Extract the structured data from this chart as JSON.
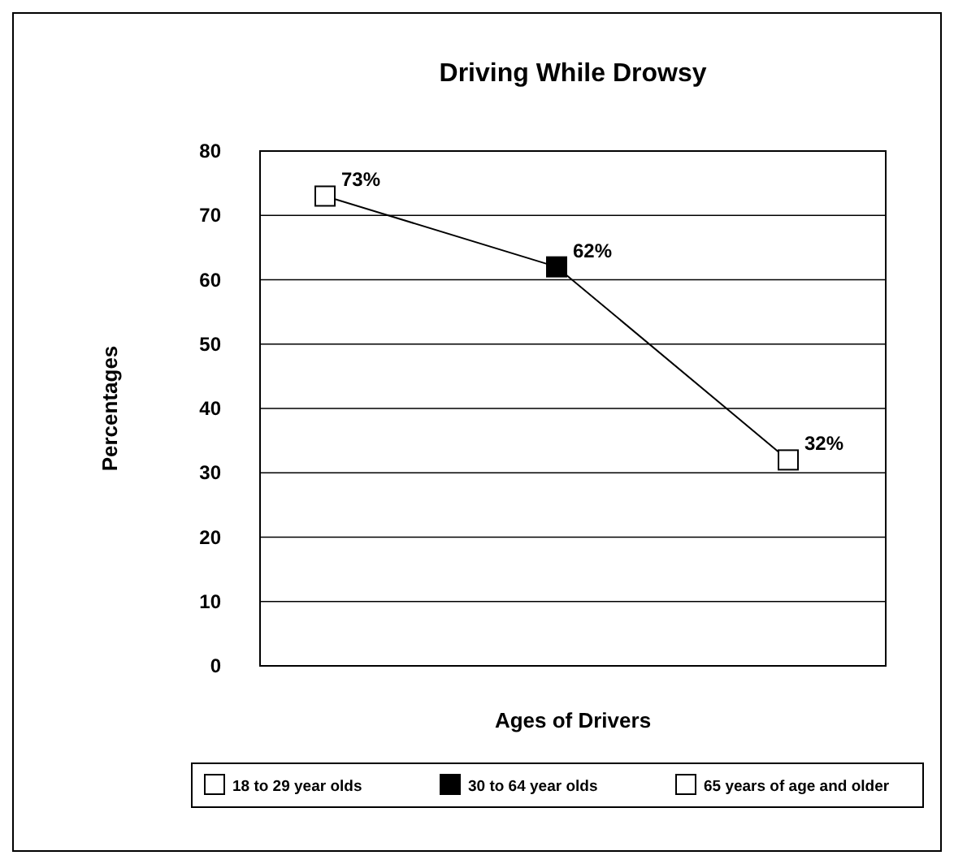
{
  "chart_data": {
    "type": "line",
    "title": "Driving While Drowsy",
    "xlabel": "Ages of Drivers",
    "ylabel": "Percentages",
    "categories": [
      null,
      null,
      null
    ],
    "series": [
      {
        "color": "#000000",
        "values": [
          73,
          62,
          32
        ],
        "value_labels": [
          "73%",
          "62%",
          "32%"
        ],
        "marker": "none"
      },
      {
        "type": "scatter",
        "name": "18 to 29 year olds",
        "color": "#ffffff",
        "values": [
          73,
          null,
          null
        ],
        "marker": "square"
      },
      {
        "type": "scatter",
        "name": "30 to 64 year olds",
        "color": "#000000",
        "values": [
          null,
          62,
          null
        ],
        "marker": "square"
      },
      {
        "type": "scatter",
        "name": "65 years of age and older",
        "color": "#ffffff",
        "values": [
          null,
          null,
          32
        ],
        "marker": "square"
      }
    ],
    "ylim": [
      0,
      80
    ],
    "yticks": [
      0,
      10,
      20,
      30,
      40,
      50,
      60,
      70,
      80
    ],
    "grid": "y",
    "legend": "bottom"
  }
}
